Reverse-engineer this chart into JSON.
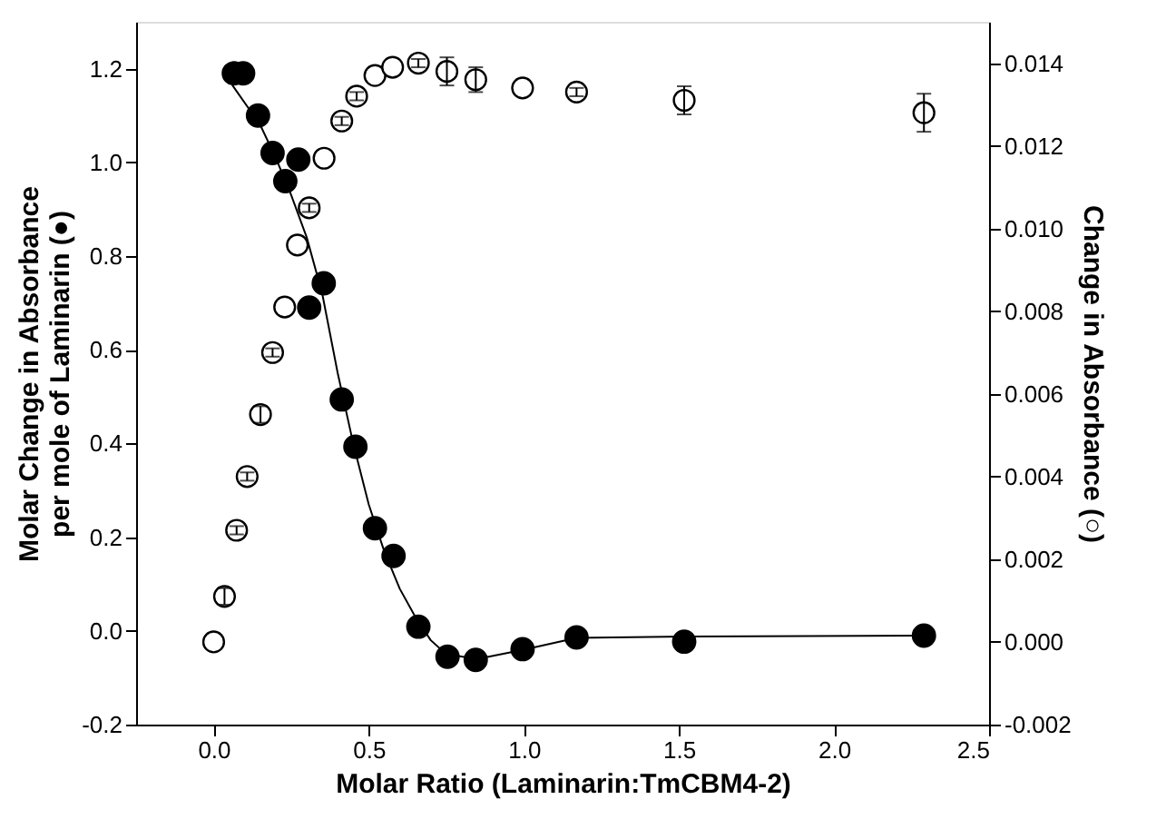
{
  "chart_data": {
    "type": "scatter",
    "xlabel": "Molar Ratio (Laminarin:TmCBM4-2)",
    "ylabel": "Molar Change in Absorbance\nper mole of Laminarin (●)",
    "y2label": "Change in Absorbance (○)",
    "xlim": [
      -0.25,
      2.5
    ],
    "xticks": [
      {
        "value": 0,
        "label": "0.0"
      },
      0.5,
      {
        "value": 1,
        "label": "1.0"
      },
      1.5,
      {
        "value": 2,
        "label": "2.0"
      },
      2.5
    ],
    "ylim": [
      -0.2,
      1.3
    ],
    "yticks": [
      -0.2,
      {
        "value": 0,
        "label": "0.0"
      },
      0.2,
      0.4,
      0.6,
      0.8,
      {
        "value": 1,
        "label": "1.0"
      },
      1.2
    ],
    "y2lim": [
      -0.002,
      0.015
    ],
    "y2ticks": [
      -0.002,
      {
        "value": 0,
        "label": "0.000"
      },
      0.002,
      0.004,
      0.006,
      0.008,
      {
        "value": 0.01,
        "label": "0.010"
      },
      0.012,
      0.014
    ],
    "grid": false,
    "marker": "circle",
    "series": [
      {
        "type": "scatter",
        "color": "#000000",
        "x": [
          0.065,
          0.095,
          0.143,
          0.19,
          0.231,
          0.273,
          0.308,
          0.355,
          0.413,
          0.457,
          0.52,
          0.58,
          0.66,
          0.754,
          0.845,
          0.996,
          1.17,
          1.517,
          2.29
        ],
        "values": [
          1.19,
          1.19,
          1.1,
          1.02,
          0.96,
          1.006,
          0.69,
          0.742,
          0.494,
          0.393,
          0.219,
          0.16,
          0.009,
          -0.055,
          -0.062,
          -0.039,
          -0.014,
          -0.023,
          -0.01
        ]
      },
      {
        "type": "line",
        "color": "#000000",
        "line_style": "solid",
        "marker": "none",
        "x": [
          0.06,
          0.15,
          0.2,
          0.25,
          0.3,
          0.35,
          0.4,
          0.45,
          0.5,
          0.55,
          0.6,
          0.65,
          0.7,
          0.75,
          0.85,
          1.0,
          1.17,
          1.52,
          2.29
        ],
        "values": [
          1.165,
          1.08,
          1.01,
          0.93,
          0.84,
          0.72,
          0.55,
          0.4,
          0.27,
          0.17,
          0.09,
          0.03,
          -0.02,
          -0.05,
          -0.06,
          -0.04,
          -0.015,
          -0.012,
          -0.01
        ]
      },
      {
        "type": "scatter",
        "axis": "y2",
        "color": "#000000",
        "x": [
          0.0,
          0.035,
          0.074,
          0.108,
          0.151,
          0.19,
          0.229,
          0.27,
          0.308,
          0.356,
          0.413,
          0.461,
          0.52,
          0.577,
          0.66,
          0.752,
          0.845,
          0.996,
          1.17,
          1.517,
          2.29
        ],
        "values": [
          0.0,
          0.0011,
          0.0027,
          0.004,
          0.0055,
          0.007,
          0.0081,
          0.0096,
          0.0105,
          0.0117,
          0.0126,
          0.0132,
          0.0137,
          0.0139,
          0.014,
          0.0138,
          0.0136,
          0.0134,
          0.0133,
          0.0131,
          0.0128
        ],
        "errors": [
          null,
          0.0002,
          0.0001,
          0.0001,
          0.0002,
          0.0001,
          null,
          null,
          0.0001,
          null,
          0.0001,
          0.0001,
          null,
          null,
          0.0001,
          0.00034,
          0.0003,
          null,
          0.0001,
          0.00034,
          0.00046
        ]
      }
    ]
  }
}
